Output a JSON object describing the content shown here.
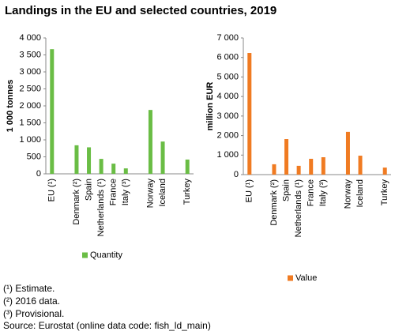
{
  "title": "Landings  in the EU and selected countries, 2019",
  "chart_data": [
    {
      "type": "bar",
      "ylabel": "1 000 tonnes",
      "categories": [
        "EU (¹)",
        null,
        "Denmark (²)",
        "Spain",
        "Netherlands (¹)",
        "France",
        "Italy (³)",
        null,
        "Norway",
        "Iceland",
        null,
        "Turkey"
      ],
      "series": [
        {
          "name": "Quantity",
          "color": "#6abd45",
          "values": [
            3670,
            null,
            840,
            780,
            440,
            300,
            160,
            null,
            1880,
            950,
            null,
            420
          ]
        }
      ],
      "ylim": [
        0,
        4000
      ],
      "yticks": [
        0,
        500,
        {
          "value": 1000,
          "label": "1 000"
        },
        {
          "value": 1500,
          "label": "1 500"
        },
        {
          "value": 2000,
          "label": "2 000"
        },
        {
          "value": 2500,
          "label": "2 500"
        },
        {
          "value": 3000,
          "label": "3 000"
        },
        {
          "value": 3500,
          "label": "3 500"
        },
        {
          "value": 4000,
          "label": "4 000"
        }
      ],
      "grid": false
    },
    {
      "type": "bar",
      "ylabel": "million EUR",
      "categories": [
        "EU (¹)",
        null,
        "Denmark (²)",
        "Spain",
        "Netherlands (¹)",
        "France",
        "Italy (³)",
        null,
        "Norway",
        "Iceland",
        null,
        "Turkey"
      ],
      "series": [
        {
          "name": "Value",
          "color": "#f07b22",
          "values": [
            6230,
            null,
            530,
            1820,
            450,
            810,
            890,
            null,
            2190,
            970,
            null,
            360
          ]
        }
      ],
      "ylim": [
        0,
        7000
      ],
      "yticks": [
        0,
        {
          "value": 1000,
          "label": "1 000"
        },
        {
          "value": 2000,
          "label": "2 000"
        },
        {
          "value": 3000,
          "label": "3 000"
        },
        {
          "value": 4000,
          "label": "4 000"
        },
        {
          "value": 5000,
          "label": "5 000"
        },
        {
          "value": 6000,
          "label": "6 000"
        },
        {
          "value": 7000,
          "label": "7 000"
        }
      ],
      "grid": false
    }
  ],
  "notes": [
    "(¹) Estimate.",
    "(²) 2016 data.",
    "(³) Provisional.",
    "Source: Eurostat (online data code: fish_ld_main)"
  ]
}
